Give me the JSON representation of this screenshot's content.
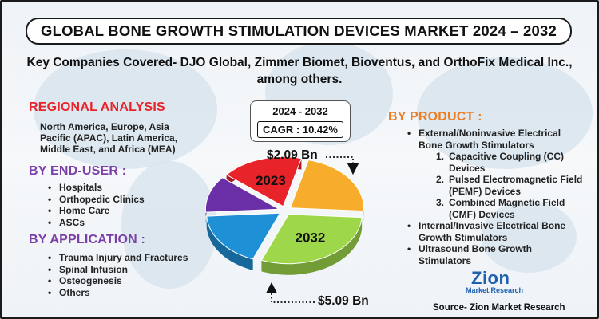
{
  "title": "GLOBAL BONE GROWTH STIMULATION DEVICES MARKET 2024 – 2032",
  "subtitle": "Key Companies Covered- DJO Global, Zimmer Biomet, Bioventus, and OrthoFix Medical Inc., among others.",
  "regional": {
    "heading": "REGIONAL ANALYSIS",
    "text": "North America, Europe, Asia Pacific (APAC), Latin America, Middle East, and Africa (MEA)"
  },
  "end_user": {
    "heading": "BY END-USER :",
    "items": [
      "Hospitals",
      "Orthopedic Clinics",
      "Home Care",
      "ASCs"
    ]
  },
  "application": {
    "heading": "BY APPLICATION :",
    "items": [
      "Trauma Injury and Fractures",
      "Spinal Infusion",
      "Osteogenesis",
      "Others"
    ]
  },
  "product": {
    "heading": "BY PRODUCT :",
    "item1": "External/Noninvasive Electrical Bone Growth Stimulators",
    "sub": [
      {
        "num": "1.",
        "text": "Capacitive Coupling (CC) Devices"
      },
      {
        "num": "2.",
        "text": "Pulsed Electromagnetic Field (PEMF) Devices"
      },
      {
        "num": "3.",
        "text": "Combined Magnetic Field (CMF) Devices"
      }
    ],
    "item2": "Internal/Invasive Electrical Bone Growth Stimulators",
    "item3": "Ultrasound Bone Growth Stimulators"
  },
  "cagr": {
    "period": "2024 - 2032",
    "value": "CAGR : 10.42%"
  },
  "logo": {
    "name": "Zion",
    "sub": "Market.Research"
  },
  "source": "Source- Zion Market Research",
  "colors": {
    "red": "#e8232a",
    "yellow": "#f7ad2b",
    "green": "#9ed84a",
    "blue": "#1e90d6",
    "purple": "#6a2fa6",
    "heading_red": "#e8232a",
    "heading_purple": "#7b3fa7",
    "heading_orange": "#ee7d22"
  },
  "chart_data": {
    "type": "pie",
    "title": "",
    "start_year": "2023",
    "end_year": "2032",
    "start_value_label": "$2.09 Bn",
    "end_value_label": "$5.09 Bn",
    "start_value": 2.09,
    "end_value": 5.09,
    "unit": "USD Bn",
    "cagr_percent": 10.42,
    "slices": [
      {
        "name": "segment-red",
        "share": 18,
        "color": "#e8232a",
        "label": "2023"
      },
      {
        "name": "segment-yellow",
        "share": 22,
        "color": "#f7ad2b",
        "label": ""
      },
      {
        "name": "segment-green",
        "share": 30,
        "color": "#9ed84a",
        "label": "2032"
      },
      {
        "name": "segment-blue",
        "share": 18,
        "color": "#1e90d6",
        "label": ""
      },
      {
        "name": "segment-purple",
        "share": 12,
        "color": "#6a2fa6",
        "label": ""
      }
    ]
  }
}
